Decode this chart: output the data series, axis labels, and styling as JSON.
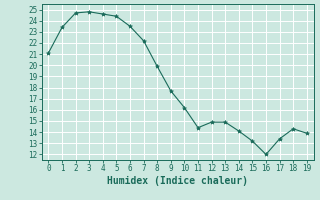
{
  "x": [
    0,
    1,
    2,
    3,
    4,
    5,
    6,
    7,
    8,
    9,
    10,
    11,
    12,
    13,
    14,
    15,
    16,
    17,
    18,
    19
  ],
  "y": [
    21.1,
    23.4,
    24.7,
    24.8,
    24.6,
    24.4,
    23.5,
    22.2,
    19.9,
    17.7,
    16.2,
    14.4,
    14.9,
    14.9,
    14.1,
    13.2,
    12.0,
    13.4,
    14.3,
    13.9
  ],
  "line_color": "#1a6b5a",
  "marker": "*",
  "marker_size": 3,
  "bg_color": "#cce8e0",
  "grid_color": "#ffffff",
  "xlabel": "Humidex (Indice chaleur)",
  "xlim": [
    -0.5,
    19.5
  ],
  "ylim": [
    11.5,
    25.5
  ],
  "yticks": [
    12,
    13,
    14,
    15,
    16,
    17,
    18,
    19,
    20,
    21,
    22,
    23,
    24,
    25
  ],
  "xticks": [
    0,
    1,
    2,
    3,
    4,
    5,
    6,
    7,
    8,
    9,
    10,
    11,
    12,
    13,
    14,
    15,
    16,
    17,
    18,
    19
  ],
  "tick_fontsize": 5.5,
  "label_fontsize": 7.0
}
